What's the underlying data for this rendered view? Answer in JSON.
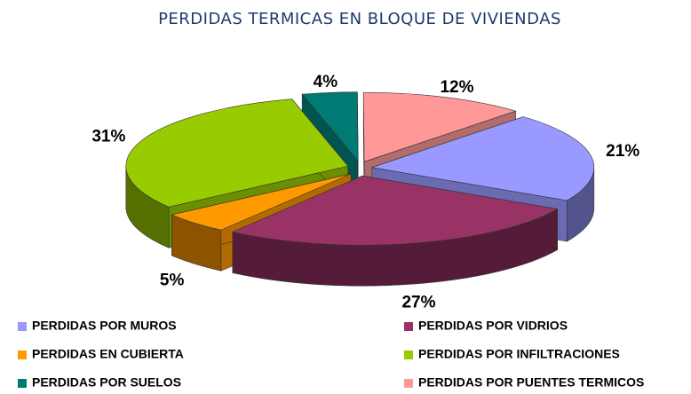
{
  "chart_data": {
    "type": "pie3d",
    "title": "PERDIDAS TERMICAS EN BLOQUE DE VIVIENDAS",
    "series": [
      {
        "name": "PERDIDAS POR MUROS",
        "color": "#9999ff",
        "values": [
          21
        ],
        "value_labels": [
          "21%"
        ]
      },
      {
        "name": "PERDIDAS POR VIDRIOS",
        "color": "#993366",
        "values": [
          27
        ],
        "value_labels": [
          "27%"
        ]
      },
      {
        "name": "PERDIDAS EN CUBIERTA",
        "color": "#ff9900",
        "values": [
          5
        ],
        "value_labels": [
          "5%"
        ]
      },
      {
        "name": "PERDIDAS POR INFILTRACIONES",
        "color": "#99cc00",
        "values": [
          31
        ],
        "value_labels": [
          "31%"
        ]
      },
      {
        "name": "PERDIDAS POR SUELOS",
        "color": "#007a73",
        "values": [
          4
        ],
        "value_labels": [
          "4%"
        ]
      },
      {
        "name": "PERDIDAS POR PUENTES TERMICOS",
        "color": "#ff9999",
        "values": [
          12
        ],
        "value_labels": [
          "12%"
        ]
      }
    ]
  }
}
